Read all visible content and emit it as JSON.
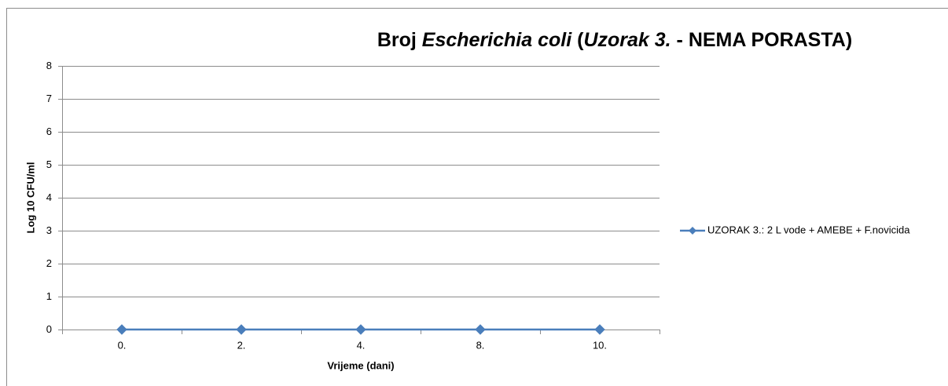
{
  "chart_data": {
    "type": "line",
    "title": [
      {
        "text": "Broj ",
        "italic": false
      },
      {
        "text": "Escherichia coli",
        "italic": true
      },
      {
        "text": " (",
        "italic": false
      },
      {
        "text": "Uzorak 3.",
        "italic": true
      },
      {
        "text": " - NEMA PORASTA)",
        "italic": false
      }
    ],
    "x_label": "Vrijeme (dani)",
    "y_label": "Log 10 CFU/ml",
    "categories": [
      "0.",
      "2.",
      "4.",
      "8.",
      "10."
    ],
    "series": [
      {
        "name": "UZORAK 3.: 2 L vode + AMEBE + F.novicida",
        "color": "#4a7ebb",
        "values": [
          0,
          0,
          0,
          0,
          0
        ]
      }
    ],
    "ylim": [
      0,
      8
    ],
    "yticks": [
      0,
      1,
      2,
      3,
      4,
      5,
      6,
      7,
      8
    ],
    "grid": true,
    "legend": "right"
  }
}
